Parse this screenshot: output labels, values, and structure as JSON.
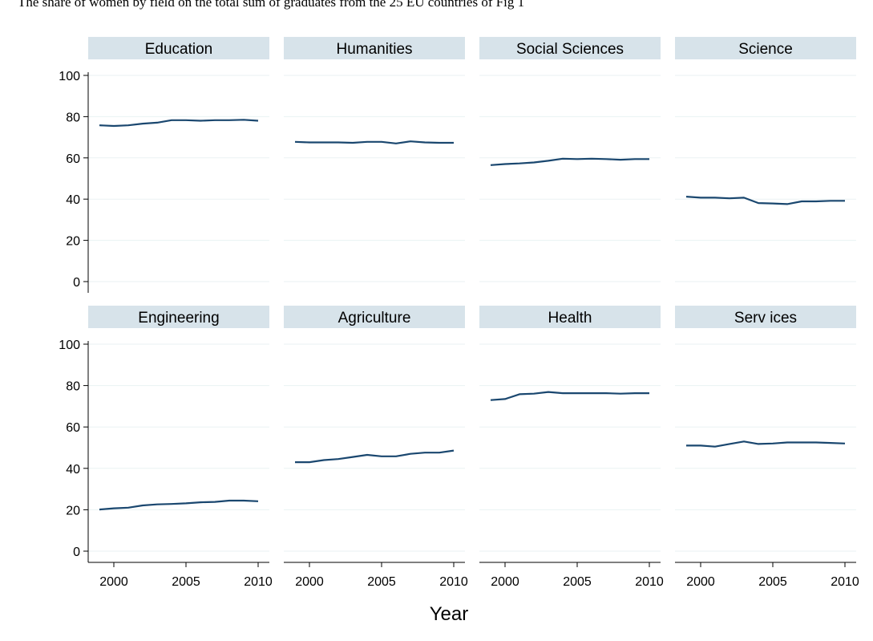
{
  "caption": "The share of women by field on the total sum of graduates from the 25 EU countries of Fig 1",
  "chart_data": {
    "type": "line",
    "layout": "small-multiples",
    "xlabel": "Year",
    "ylabel": "",
    "xlim": [
      1999,
      2010
    ],
    "ylim": [
      0,
      100
    ],
    "xticks": [
      2000,
      2005,
      2010
    ],
    "yticks": [
      0,
      20,
      40,
      60,
      80,
      100
    ],
    "grid": true,
    "x": [
      1999,
      2000,
      2001,
      2002,
      2003,
      2004,
      2005,
      2006,
      2007,
      2008,
      2009,
      2010
    ],
    "panels": [
      {
        "title": "Education",
        "values": [
          75.8,
          75.5,
          75.8,
          76.6,
          77.1,
          78.3,
          78.3,
          78.0,
          78.3,
          78.3,
          78.5,
          78.0
        ]
      },
      {
        "title": "Humanities",
        "values": [
          67.8,
          67.5,
          67.5,
          67.5,
          67.3,
          67.8,
          67.8,
          67.0,
          68.0,
          67.5,
          67.3,
          67.3
        ]
      },
      {
        "title": "Social Sciences",
        "values": [
          56.5,
          57.0,
          57.3,
          57.8,
          58.6,
          59.6,
          59.4,
          59.6,
          59.4,
          59.1,
          59.4,
          59.4
        ]
      },
      {
        "title": "Science",
        "values": [
          41.2,
          40.7,
          40.7,
          40.4,
          40.7,
          38.1,
          37.9,
          37.6,
          38.9,
          38.9,
          39.2,
          39.2
        ]
      },
      {
        "title": "Engineering",
        "values": [
          20.1,
          20.7,
          21.0,
          22.1,
          22.6,
          22.8,
          23.1,
          23.6,
          23.8,
          24.4,
          24.4,
          24.1
        ]
      },
      {
        "title": "Agriculture",
        "values": [
          43.0,
          43.0,
          44.0,
          44.5,
          45.5,
          46.5,
          45.8,
          45.8,
          47.0,
          47.6,
          47.6,
          48.6
        ]
      },
      {
        "title": "Health",
        "values": [
          73.0,
          73.5,
          75.8,
          76.1,
          76.9,
          76.3,
          76.3,
          76.3,
          76.3,
          76.1,
          76.3,
          76.3
        ]
      },
      {
        "title": "Serv ices",
        "values": [
          51.0,
          51.0,
          50.5,
          51.8,
          53.0,
          51.8,
          52.0,
          52.5,
          52.5,
          52.5,
          52.3,
          52.0
        ]
      }
    ]
  },
  "colors": {
    "line": "#1a476f",
    "strip": "#d7e3ea",
    "grid": "#eaf2f3",
    "axis": "#000000"
  }
}
